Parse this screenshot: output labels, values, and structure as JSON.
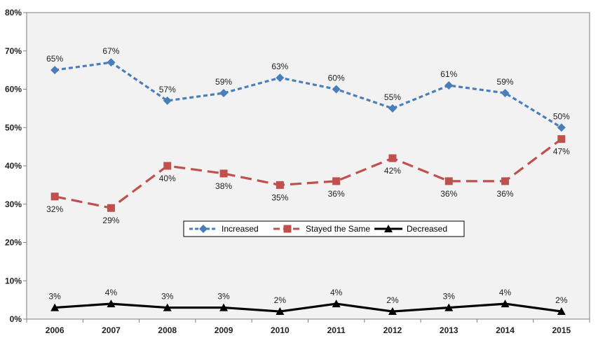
{
  "chart_data": {
    "type": "line",
    "title": "",
    "xlabel": "",
    "ylabel": "",
    "categories": [
      "2006",
      "2007",
      "2008",
      "2009",
      "2010",
      "2011",
      "2012",
      "2013",
      "2014",
      "2015"
    ],
    "ylim": [
      0,
      80
    ],
    "yticks": [
      "0%",
      "10%",
      "20%",
      "30%",
      "40%",
      "50%",
      "60%",
      "70%",
      "80%"
    ],
    "grid": false,
    "legend_position": "center",
    "series": [
      {
        "name": "Increased",
        "values": [
          65,
          67,
          57,
          59,
          63,
          60,
          55,
          61,
          59,
          50
        ],
        "labels": [
          "65%",
          "67%",
          "57%",
          "59%",
          "63%",
          "60%",
          "55%",
          "61%",
          "59%",
          "50%"
        ],
        "color": "#4a7ebb",
        "marker": "diamond",
        "line_style": "dotted"
      },
      {
        "name": "Stayed the Same",
        "values": [
          32,
          29,
          40,
          38,
          35,
          36,
          42,
          36,
          36,
          47
        ],
        "labels": [
          "32%",
          "29%",
          "40%",
          "38%",
          "35%",
          "36%",
          "42%",
          "36%",
          "36%",
          "47%"
        ],
        "color": "#c0504d",
        "marker": "square",
        "line_style": "dashed"
      },
      {
        "name": "Decreased",
        "values": [
          3,
          4,
          3,
          3,
          2,
          4,
          2,
          3,
          4,
          2
        ],
        "labels": [
          "3%",
          "4%",
          "3%",
          "3%",
          "2%",
          "4%",
          "2%",
          "3%",
          "4%",
          "2%"
        ],
        "color": "#000000",
        "marker": "triangle",
        "line_style": "solid"
      }
    ],
    "plot_background": "#f2f2f2"
  }
}
